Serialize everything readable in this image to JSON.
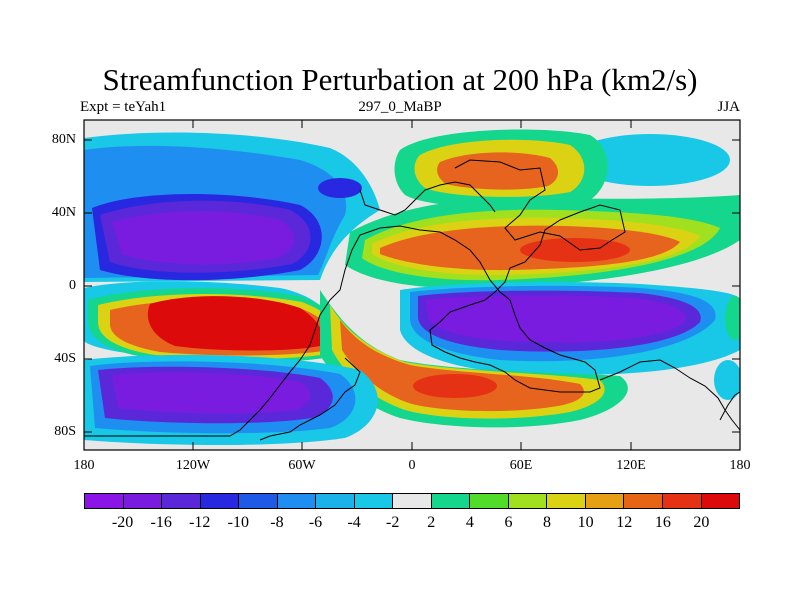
{
  "title": "Streamfunction Perturbation at 200 hPa (km2/s)",
  "subtitle_left": "Expt = teYah1",
  "subtitle_center": "297_0_MaBP",
  "subtitle_right": "JJA",
  "y_ticks": [
    "80N",
    "40N",
    "0",
    "40S",
    "80S"
  ],
  "x_ticks": [
    "180",
    "120W",
    "60W",
    "0",
    "60E",
    "120E",
    "180"
  ],
  "colorbar": {
    "labels": [
      "-20",
      "-16",
      "-12",
      "-10",
      "-8",
      "-6",
      "-4",
      "-2",
      "2",
      "4",
      "6",
      "8",
      "10",
      "12",
      "16",
      "20"
    ],
    "colors": [
      "#8b14e6",
      "#7a1ce0",
      "#5a28d8",
      "#2828e0",
      "#1f5ae6",
      "#1e8ef0",
      "#1ab2e8",
      "#19c8e6",
      "#e8e8e8",
      "#14d68c",
      "#50dc28",
      "#a0e01e",
      "#dcd214",
      "#e6a014",
      "#e66414",
      "#e63214",
      "#dc0a0a"
    ]
  }
}
